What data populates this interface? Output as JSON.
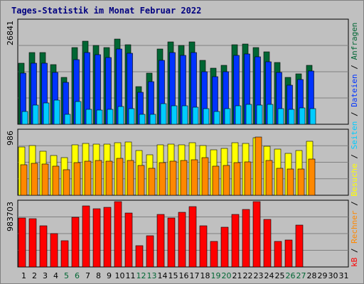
{
  "title": "Tages-Statistik im Monat Februar 2022",
  "chart_data": [
    {
      "type": "bar",
      "panel": "top",
      "ymax_label": "26841",
      "ylim": [
        0,
        26841
      ],
      "categories": [
        "1",
        "2",
        "3",
        "4",
        "5",
        "6",
        "7",
        "8",
        "9",
        "10",
        "11",
        "12",
        "13",
        "14",
        "15",
        "16",
        "17",
        "18",
        "19",
        "20",
        "21",
        "22",
        "23",
        "24",
        "25",
        "26",
        "27",
        "28",
        "29",
        "30",
        "31"
      ],
      "series": [
        {
          "name": "Anfragen",
          "color": "#006633",
          "values": [
            15800,
            18600,
            18600,
            15400,
            12200,
            19800,
            21600,
            20400,
            19800,
            22000,
            20600,
            9800,
            13200,
            19400,
            21400,
            20400,
            21400,
            16600,
            14600,
            15200,
            20600,
            20800,
            19800,
            18800,
            16000,
            12200,
            13000,
            15200,
            null,
            null,
            null
          ]
        },
        {
          "name": "Dateien",
          "color": "#0033ff",
          "values": [
            13200,
            15800,
            15800,
            13400,
            10800,
            16800,
            18600,
            18000,
            17200,
            19400,
            18400,
            8200,
            11000,
            16600,
            18600,
            17800,
            18600,
            13600,
            12400,
            13600,
            17800,
            18200,
            17400,
            16200,
            13400,
            10200,
            11600,
            13800,
            null,
            null,
            null
          ]
        },
        {
          "name": "Seiten",
          "color": "#00ccff",
          "values": [
            3400,
            5000,
            5600,
            6200,
            2600,
            5800,
            3800,
            3600,
            3800,
            4600,
            4000,
            2600,
            2600,
            5400,
            4800,
            4800,
            4400,
            4000,
            3400,
            4000,
            4800,
            5200,
            5000,
            5200,
            4000,
            3800,
            4200,
            4000,
            null,
            null,
            null
          ]
        }
      ]
    },
    {
      "type": "bar",
      "panel": "middle",
      "ymax_label": "986",
      "ylim": [
        0,
        986
      ],
      "categories": [
        "1",
        "2",
        "3",
        "4",
        "5",
        "6",
        "7",
        "8",
        "9",
        "10",
        "11",
        "12",
        "13",
        "14",
        "15",
        "16",
        "17",
        "18",
        "19",
        "20",
        "21",
        "22",
        "23",
        "24",
        "25",
        "26",
        "27",
        "28",
        "29",
        "30",
        "31"
      ],
      "series": [
        {
          "name": "Besuche",
          "color": "#ffff00",
          "values": [
            740,
            760,
            670,
            610,
            570,
            770,
            790,
            780,
            780,
            800,
            810,
            680,
            620,
            770,
            780,
            770,
            800,
            760,
            690,
            720,
            800,
            790,
            880,
            750,
            700,
            640,
            680,
            820,
            null,
            null,
            null
          ]
        },
        {
          "name": "Rechner",
          "color": "#ff8800",
          "values": [
            470,
            490,
            480,
            440,
            390,
            500,
            520,
            530,
            520,
            560,
            530,
            450,
            410,
            500,
            520,
            530,
            540,
            570,
            440,
            460,
            500,
            510,
            890,
            530,
            410,
            400,
            400,
            550,
            null,
            null,
            null
          ]
        }
      ]
    },
    {
      "type": "bar",
      "panel": "bottom",
      "ymax_label": "983703",
      "ylim": [
        0,
        983703
      ],
      "categories": [
        "1",
        "2",
        "3",
        "4",
        "5",
        "6",
        "7",
        "8",
        "9",
        "10",
        "11",
        "12",
        "13",
        "14",
        "15",
        "16",
        "17",
        "18",
        "19",
        "20",
        "21",
        "22",
        "23",
        "24",
        "25",
        "26",
        "27",
        "28",
        "29",
        "30",
        "31"
      ],
      "series": [
        {
          "name": "kB",
          "color": "#ff0000",
          "values": [
            740000,
            730000,
            620000,
            500000,
            400000,
            750000,
            920000,
            880000,
            900000,
            983703,
            810000,
            320000,
            470000,
            790000,
            740000,
            820000,
            910000,
            620000,
            380000,
            600000,
            790000,
            870000,
            983703,
            720000,
            390000,
            410000,
            630000,
            null,
            null,
            null,
            null
          ]
        }
      ]
    }
  ],
  "x_label_colors": {
    "weekday": "#000000",
    "weekend": "#006633"
  },
  "weekend_days": [
    "5",
    "6",
    "12",
    "13",
    "19",
    "20",
    "26",
    "27"
  ],
  "legend": [
    {
      "text": "kB",
      "color": "#ff0000"
    },
    {
      "text": " / ",
      "color": "#000000"
    },
    {
      "text": "Rechner",
      "color": "#ff8800"
    },
    {
      "text": " / ",
      "color": "#000000"
    },
    {
      "text": "Besuche",
      "color": "#ffff00"
    },
    {
      "text": " / ",
      "color": "#000000"
    },
    {
      "text": "Seiten",
      "color": "#00ccff"
    },
    {
      "text": " / ",
      "color": "#000000"
    },
    {
      "text": "Dateien",
      "color": "#0033ff"
    },
    {
      "text": " / ",
      "color": "#000000"
    },
    {
      "text": "Anfragen",
      "color": "#006633"
    }
  ]
}
